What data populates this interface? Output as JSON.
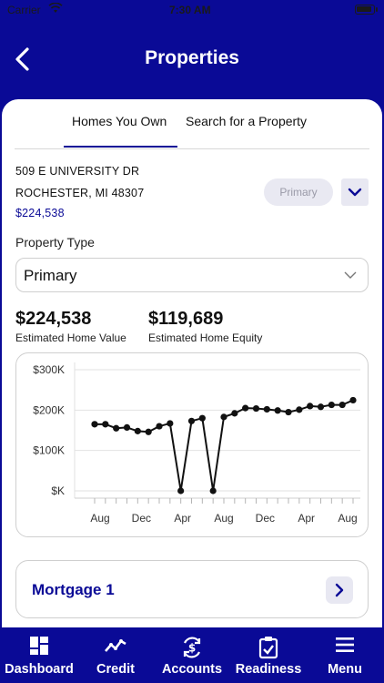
{
  "status_bar": {
    "carrier": "Carrier",
    "time": "7:30 AM"
  },
  "header": {
    "title": "Properties"
  },
  "tabs": [
    {
      "label": "Homes You Own",
      "selected": true
    },
    {
      "label": "Search for a Property",
      "selected": false
    }
  ],
  "property": {
    "address_line1": "509 E UNIVERSITY DR",
    "address_line2": "ROCHESTER, MI 48307",
    "value": "$224,538",
    "residence_badge": "Primary"
  },
  "property_type": {
    "label": "Property Type",
    "selected": "Primary"
  },
  "stats": {
    "home_value": "$224,538",
    "home_value_label": "Estimated Home Value",
    "home_equity": "$119,689",
    "home_equity_label": "Estimated Home Equity"
  },
  "chart_data": {
    "type": "line",
    "y_tick_labels": [
      "$300K",
      "$200K",
      "$100K",
      "$K"
    ],
    "y_tick_values": [
      300000,
      200000,
      100000,
      0
    ],
    "x_tick_labels": [
      "Aug",
      "Dec",
      "Apr",
      "Aug",
      "Dec",
      "Apr",
      "Aug"
    ],
    "ylim": [
      0,
      300000
    ],
    "grid": true,
    "series": [
      {
        "values": [
          165000,
          165000,
          155000,
          157000,
          148000,
          146000,
          160000,
          167000,
          0,
          173000,
          180000,
          0,
          183000,
          192000,
          205000,
          204000,
          202000,
          199000,
          195000,
          201000,
          210000,
          208000,
          213000,
          213000,
          224538
        ]
      }
    ]
  },
  "mortgage": {
    "label": "Mortgage 1"
  },
  "tabbar": [
    {
      "label": "Dashboard",
      "icon": "dashboard-icon"
    },
    {
      "label": "Credit",
      "icon": "credit-trend-icon"
    },
    {
      "label": "Accounts",
      "icon": "accounts-dollar-icon"
    },
    {
      "label": "Readiness",
      "icon": "readiness-clipboard-icon"
    },
    {
      "label": "Menu",
      "icon": "menu-icon"
    }
  ],
  "colors": {
    "brand": "#0a0a96",
    "pill_bg": "#e9e9f2"
  }
}
